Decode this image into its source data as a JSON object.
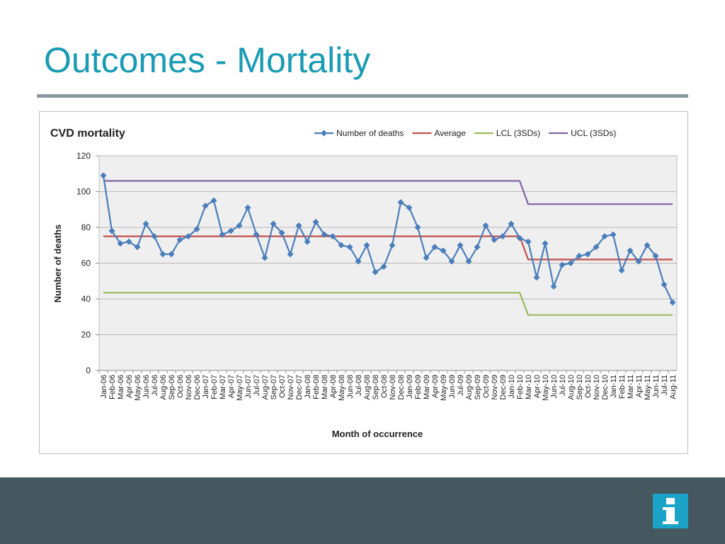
{
  "slide": {
    "title": "Outcomes - Mortality"
  },
  "colors": {
    "title": "#1a9bb4",
    "footer": "#45575f",
    "logo": "#1ba3c8",
    "plot_bg": "#efefef"
  },
  "logo_icon": "info-i-icon",
  "chart_data": {
    "type": "line",
    "title": "CVD mortality",
    "xlabel": "Month of occurrence",
    "ylabel": "Number of deaths",
    "ylim": [
      0,
      120
    ],
    "yticks": [
      0,
      20,
      40,
      60,
      80,
      100,
      120
    ],
    "grid": true,
    "legend_position": "top",
    "categories": [
      "Jan-06",
      "Feb-06",
      "Mar-06",
      "Apr-06",
      "May-06",
      "Jun-06",
      "Jul-06",
      "Aug-06",
      "Sep-06",
      "Oct-06",
      "Nov-06",
      "Dec-06",
      "Jan-07",
      "Feb-07",
      "Mar-07",
      "Apr-07",
      "May-07",
      "Jun-07",
      "Jul-07",
      "Aug-07",
      "Sep-07",
      "Oct-07",
      "Nov-07",
      "Dec-07",
      "Jan-08",
      "Feb-08",
      "Mar-08",
      "Apr-08",
      "May-08",
      "Jun-08",
      "Jul-08",
      "Aug-08",
      "Sep-08",
      "Oct-08",
      "Nov-08",
      "Dec-08",
      "Jan-09",
      "Feb-09",
      "Mar-09",
      "Apr-09",
      "May-09",
      "Jun-09",
      "Jul-09",
      "Aug-09",
      "Sep-09",
      "Oct-09",
      "Nov-09",
      "Dec-09",
      "Jan-10",
      "Feb-10",
      "Mar-10",
      "Apr-10",
      "May-10",
      "Jun-10",
      "Jul-10",
      "Aug-10",
      "Sep-10",
      "Oct-10",
      "Nov-10",
      "Dec-10",
      "Jan-11",
      "Feb-11",
      "Mar-11",
      "Apr-11",
      "May-11",
      "Jun-11",
      "Jul-11",
      "Aug-11"
    ],
    "series": [
      {
        "name": "Number of deaths",
        "color": "#4a7ebb",
        "marker": "diamond",
        "values": [
          109,
          78,
          71,
          72,
          69,
          82,
          75,
          65,
          65,
          73,
          75,
          79,
          92,
          95,
          76,
          78,
          81,
          91,
          76,
          63,
          82,
          77,
          65,
          81,
          72,
          83,
          76,
          75,
          70,
          69,
          61,
          70,
          55,
          58,
          70,
          94,
          91,
          80,
          63,
          69,
          67,
          61,
          70,
          61,
          69,
          81,
          73,
          75,
          82,
          74,
          72,
          52,
          71,
          47,
          59,
          60,
          64,
          65,
          69,
          75,
          76,
          56,
          67,
          61,
          70,
          64,
          48,
          38
        ]
      },
      {
        "name": "Average",
        "color": "#c0504d",
        "values": [
          75,
          75,
          75,
          75,
          75,
          75,
          75,
          75,
          75,
          75,
          75,
          75,
          75,
          75,
          75,
          75,
          75,
          75,
          75,
          75,
          75,
          75,
          75,
          75,
          75,
          75,
          75,
          75,
          75,
          75,
          75,
          75,
          75,
          75,
          75,
          75,
          75,
          75,
          75,
          75,
          75,
          75,
          75,
          75,
          75,
          75,
          75,
          75,
          75,
          75,
          62,
          62,
          62,
          62,
          62,
          62,
          62,
          62,
          62,
          62,
          62,
          62,
          62,
          62,
          62,
          62,
          62,
          62
        ]
      },
      {
        "name": "LCL (3SDs)",
        "color": "#9bbb59",
        "values": [
          43.5,
          43.5,
          43.5,
          43.5,
          43.5,
          43.5,
          43.5,
          43.5,
          43.5,
          43.5,
          43.5,
          43.5,
          43.5,
          43.5,
          43.5,
          43.5,
          43.5,
          43.5,
          43.5,
          43.5,
          43.5,
          43.5,
          43.5,
          43.5,
          43.5,
          43.5,
          43.5,
          43.5,
          43.5,
          43.5,
          43.5,
          43.5,
          43.5,
          43.5,
          43.5,
          43.5,
          43.5,
          43.5,
          43.5,
          43.5,
          43.5,
          43.5,
          43.5,
          43.5,
          43.5,
          43.5,
          43.5,
          43.5,
          43.5,
          43.5,
          31,
          31,
          31,
          31,
          31,
          31,
          31,
          31,
          31,
          31,
          31,
          31,
          31,
          31,
          31,
          31,
          31,
          31
        ]
      },
      {
        "name": "UCL (3SDs)",
        "color": "#8064a2",
        "values": [
          106,
          106,
          106,
          106,
          106,
          106,
          106,
          106,
          106,
          106,
          106,
          106,
          106,
          106,
          106,
          106,
          106,
          106,
          106,
          106,
          106,
          106,
          106,
          106,
          106,
          106,
          106,
          106,
          106,
          106,
          106,
          106,
          106,
          106,
          106,
          106,
          106,
          106,
          106,
          106,
          106,
          106,
          106,
          106,
          106,
          106,
          106,
          106,
          106,
          106,
          93,
          93,
          93,
          93,
          93,
          93,
          93,
          93,
          93,
          93,
          93,
          93,
          93,
          93,
          93,
          93,
          93,
          93
        ]
      }
    ]
  }
}
